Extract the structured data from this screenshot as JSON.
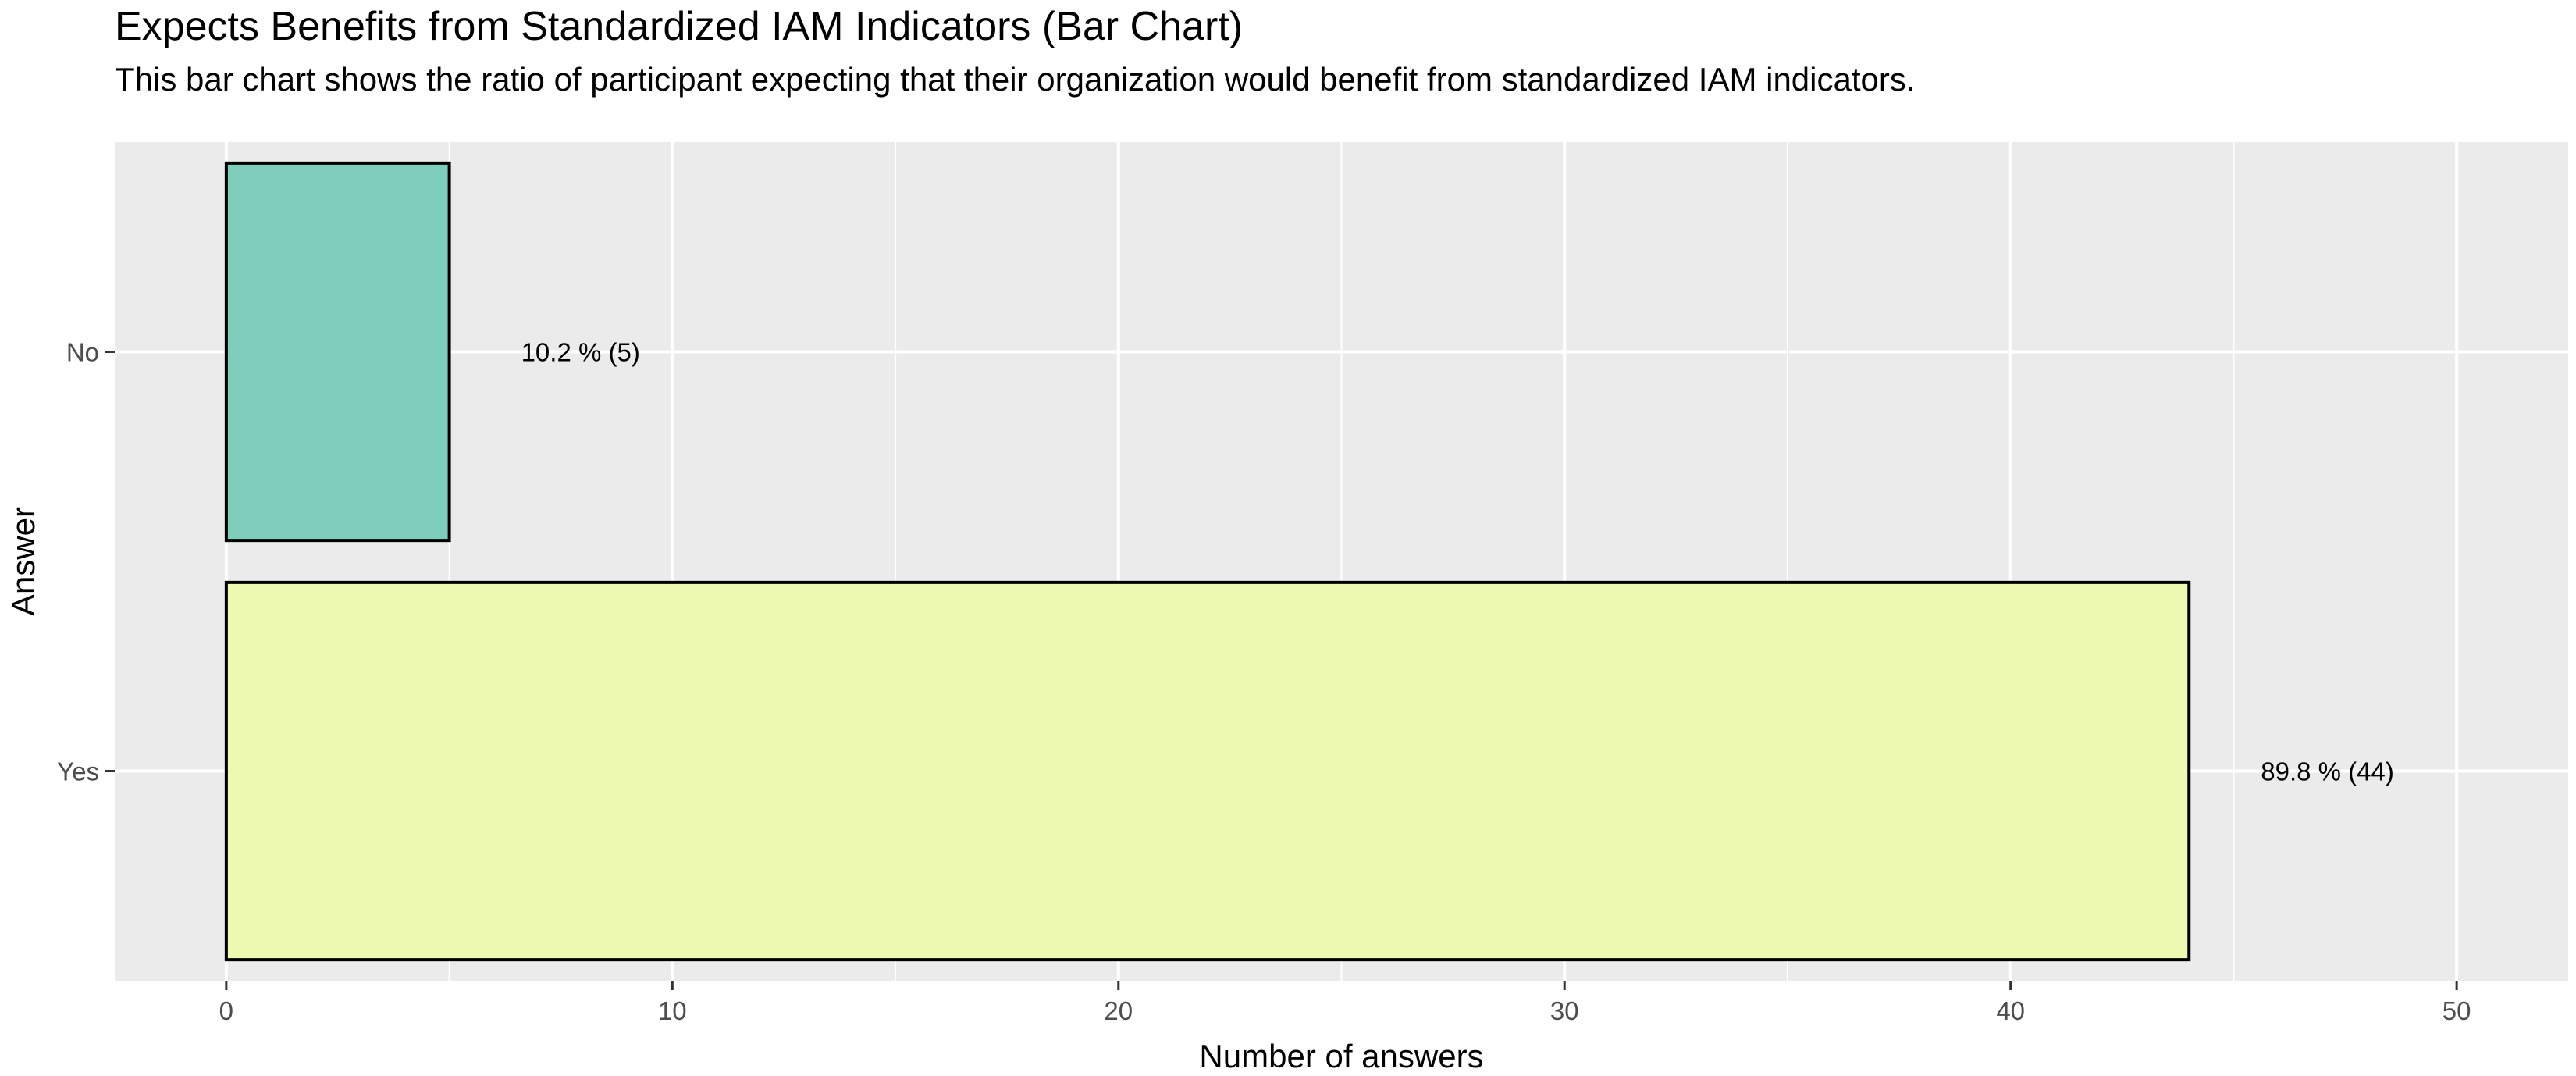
{
  "chart_data": {
    "type": "bar",
    "orientation": "horizontal",
    "title": "Expects Benefits from Standardized IAM Indicators (Bar Chart)",
    "subtitle": "This bar chart shows the ratio of participant expecting that their organization would benefit from standardized IAM indicators.",
    "xlabel": "Number of answers",
    "ylabel": "Answer",
    "categories": [
      "Yes",
      "No"
    ],
    "values": [
      44,
      5
    ],
    "data_labels": [
      "89.8 % (44)",
      "10.2 % (5)"
    ],
    "bar_colors": [
      "#edf8b1",
      "#7fcdbb"
    ],
    "bar_outline": "#000000",
    "panel_background": "#ebebeb",
    "grid_color": "#ffffff",
    "xlim": [
      -2.5,
      52.5
    ],
    "x_ticks": [
      0,
      10,
      20,
      30,
      40,
      50
    ],
    "x_minor_ticks": [
      5,
      15,
      25,
      35,
      45
    ],
    "grid": true,
    "legend": "none"
  }
}
